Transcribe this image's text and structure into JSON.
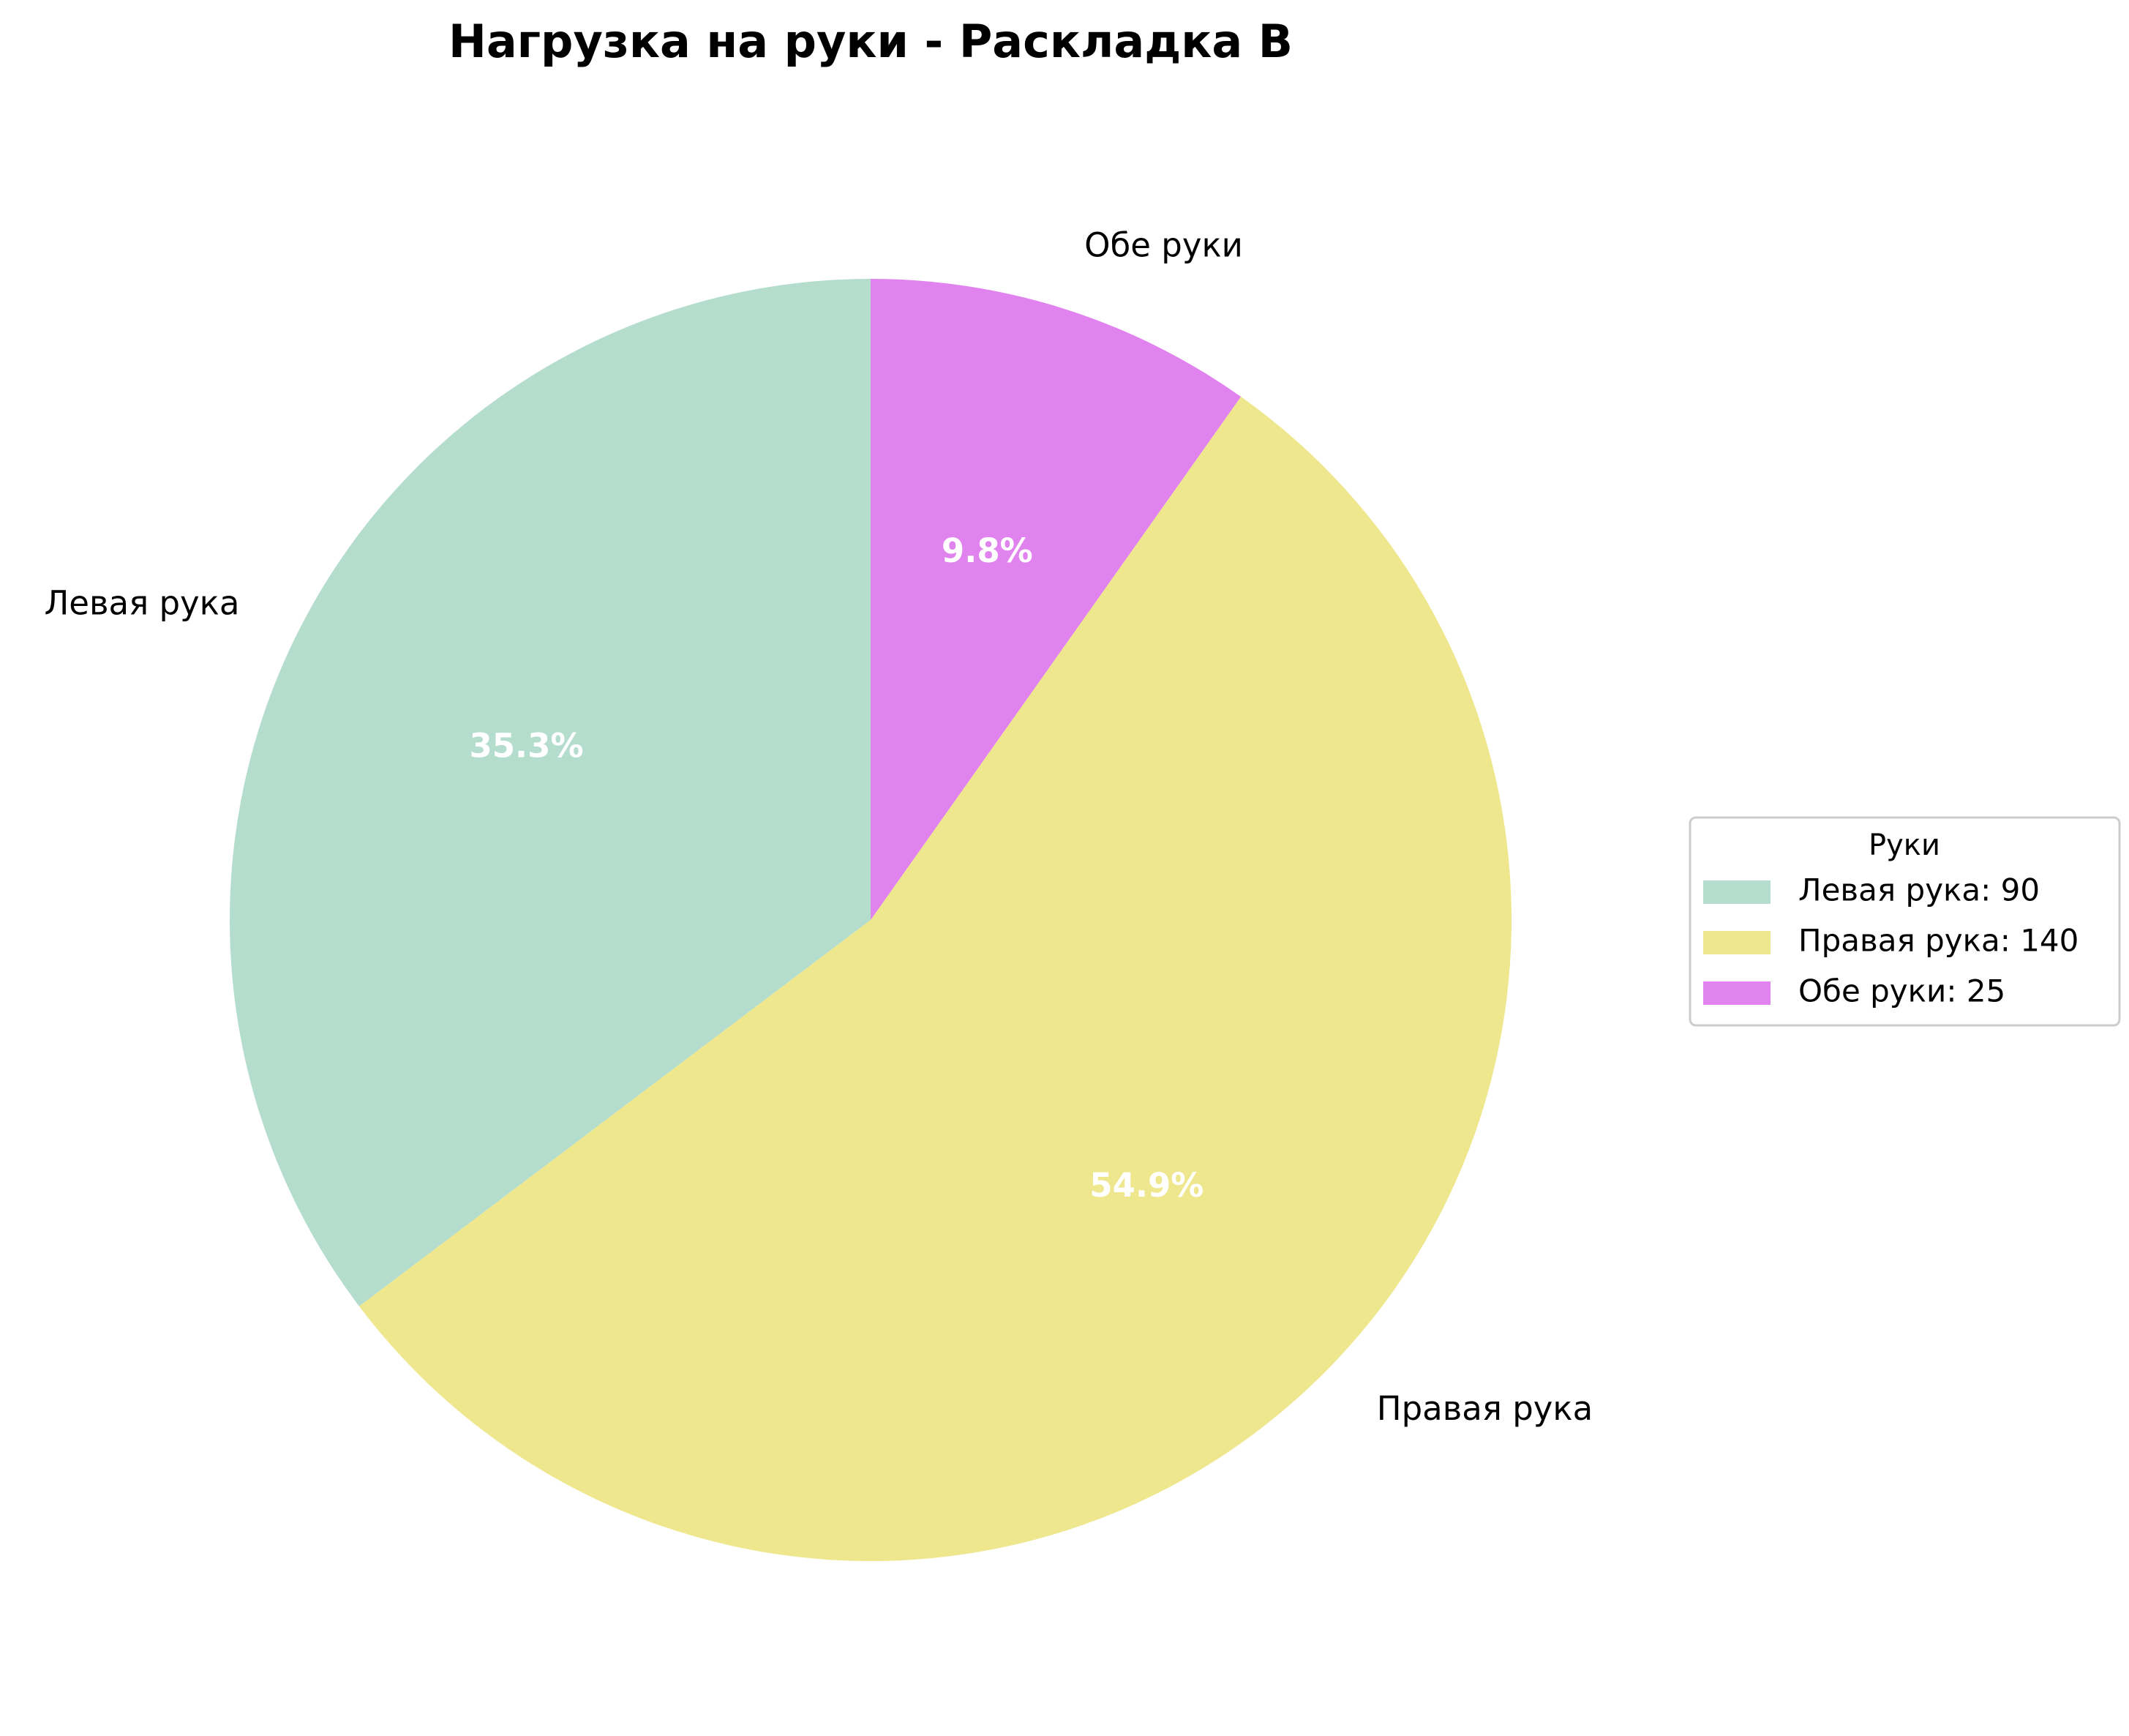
{
  "chart_data": {
    "type": "pie",
    "title": "Нагрузка на руки - Раскладка B",
    "categories": [
      "Левая рука",
      "Правая рука",
      "Обе руки"
    ],
    "values": [
      90,
      140,
      25
    ],
    "percent_labels": [
      "35.3%",
      "54.9%",
      "9.8%"
    ],
    "colors": [
      "#b5ddcd",
      "#eee78e",
      "#e183ee"
    ],
    "start_angle_deg": 90,
    "direction": "counterclockwise",
    "legend": {
      "title": "Руки",
      "placement": "center-right",
      "entries": [
        "Левая рука: 90",
        "Правая рука: 140",
        "Обе руки: 25"
      ]
    }
  }
}
